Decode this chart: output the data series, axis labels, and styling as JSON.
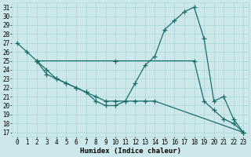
{
  "bg_color": "#cde8ea",
  "grid_color": "#b0d8db",
  "line_color": "#1a6e6a",
  "line_width": 0.9,
  "marker": "+",
  "marker_size": 4,
  "marker_edge_width": 0.9,
  "xlabel": "Humidex (Indice chaleur)",
  "xlabel_fontsize": 6.5,
  "tick_fontsize": 5.5,
  "xlim": [
    -0.5,
    23.5
  ],
  "ylim": [
    16.5,
    31.5
  ],
  "yticks": [
    17,
    18,
    19,
    20,
    21,
    22,
    23,
    24,
    25,
    26,
    27,
    28,
    29,
    30,
    31
  ],
  "xticks": [
    0,
    1,
    2,
    3,
    4,
    5,
    6,
    7,
    8,
    9,
    10,
    11,
    12,
    13,
    14,
    15,
    16,
    17,
    18,
    19,
    20,
    21,
    22,
    23
  ],
  "line1_x": [
    0,
    1,
    2,
    3,
    4,
    5,
    6,
    7,
    8,
    9,
    10,
    11,
    12,
    13,
    14,
    15,
    16,
    17,
    18,
    19,
    20,
    21,
    22,
    23
  ],
  "line1_y": [
    27,
    26,
    25,
    23.5,
    23,
    22.5,
    22,
    21.5,
    20.5,
    20,
    20,
    20.5,
    22.5,
    24.5,
    25.5,
    28.5,
    29.5,
    30.5,
    31,
    27.5,
    20.5,
    21,
    18.5,
    17
  ],
  "line2_x": [
    2,
    10,
    18,
    19,
    20,
    21,
    22,
    23
  ],
  "line2_y": [
    25,
    25,
    25,
    20.5,
    19.5,
    18.5,
    18,
    17
  ],
  "line3_x": [
    2,
    3,
    4,
    5,
    6,
    7,
    8,
    9,
    10,
    11,
    12,
    13,
    14,
    23
  ],
  "line3_y": [
    25,
    24,
    23,
    22.5,
    22,
    21.5,
    21,
    20.5,
    20.5,
    20.5,
    20.5,
    20.5,
    20.5,
    17
  ]
}
